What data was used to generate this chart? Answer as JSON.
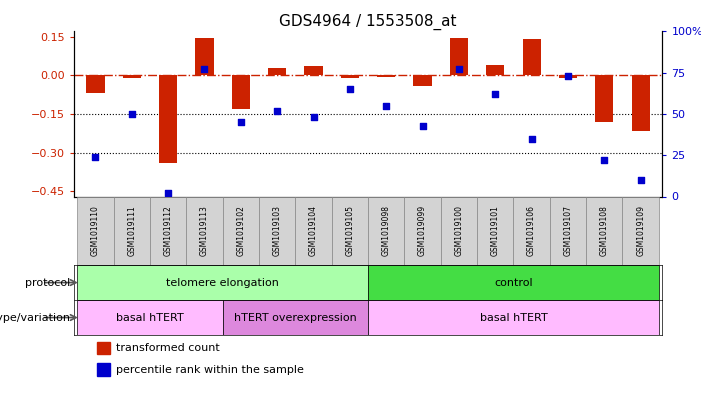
{
  "title": "GDS4964 / 1553508_at",
  "samples": [
    "GSM1019110",
    "GSM1019111",
    "GSM1019112",
    "GSM1019113",
    "GSM1019102",
    "GSM1019103",
    "GSM1019104",
    "GSM1019105",
    "GSM1019098",
    "GSM1019099",
    "GSM1019100",
    "GSM1019101",
    "GSM1019106",
    "GSM1019107",
    "GSM1019108",
    "GSM1019109"
  ],
  "transformed_count": [
    -0.07,
    -0.01,
    -0.34,
    0.145,
    -0.13,
    0.03,
    0.035,
    -0.01,
    -0.005,
    -0.04,
    0.145,
    0.04,
    0.14,
    -0.01,
    -0.18,
    -0.215
  ],
  "percentile_rank": [
    24,
    50,
    2,
    77,
    45,
    52,
    48,
    65,
    55,
    43,
    77,
    62,
    35,
    73,
    22,
    10
  ],
  "ylim_left": [
    -0.47,
    0.17
  ],
  "ylim_right": [
    0,
    100
  ],
  "yticks_left": [
    -0.45,
    -0.3,
    -0.15,
    0,
    0.15
  ],
  "yticks_right": [
    0,
    25,
    50,
    75,
    100
  ],
  "ytick_labels_right": [
    "0",
    "25",
    "50",
    "75",
    "100%"
  ],
  "dotted_lines": [
    -0.15,
    -0.3
  ],
  "bar_color": "#cc2200",
  "dot_color": "#0000cc",
  "hline_color": "#cc2200",
  "protocol_groups": [
    {
      "label": "telomere elongation",
      "start": 0,
      "end": 7,
      "color": "#aaffaa"
    },
    {
      "label": "control",
      "start": 8,
      "end": 15,
      "color": "#44dd44"
    }
  ],
  "genotype_groups": [
    {
      "label": "basal hTERT",
      "start": 0,
      "end": 3,
      "color": "#ffbbff"
    },
    {
      "label": "hTERT overexpression",
      "start": 4,
      "end": 7,
      "color": "#dd88dd"
    },
    {
      "label": "basal hTERT",
      "start": 8,
      "end": 15,
      "color": "#ffbbff"
    }
  ],
  "legend_items": [
    {
      "color": "#cc2200",
      "label": "transformed count"
    },
    {
      "color": "#0000cc",
      "label": "percentile rank within the sample"
    }
  ],
  "bar_width": 0.5,
  "fig_width": 7.01,
  "fig_height": 3.93,
  "dpi": 100
}
